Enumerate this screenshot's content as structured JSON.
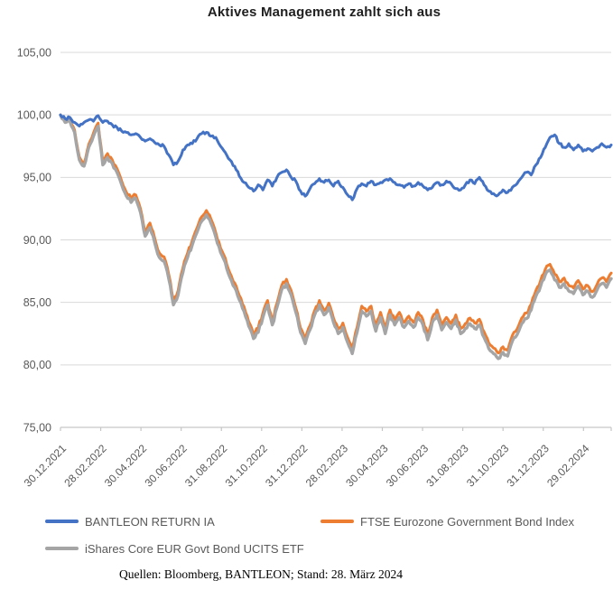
{
  "title": "Aktives Management zahlt sich aus",
  "footer": "Quellen: Bloomberg, BANTLEON; Stand: 28. März 2024",
  "colors": {
    "blue": "#4472C4",
    "orange": "#ED7D31",
    "gray": "#A5A5A5",
    "gridline": "#D9D9D9",
    "axis_line": "#C6C6C6",
    "axis_text": "#595959"
  },
  "chart_data": {
    "type": "line",
    "title": "Aktives Management zahlt sich aus",
    "xlabel": "",
    "ylabel": "",
    "ylim": [
      75,
      105
    ],
    "grid": true,
    "legend_position": "bottom",
    "y_tick_labels": [
      "105,00",
      "100,00",
      "95,00",
      "90,00",
      "85,00",
      "80,00",
      "75,00"
    ],
    "y_tick_values": [
      105,
      100,
      95,
      90,
      85,
      80,
      75
    ],
    "x_tick_labels": [
      "30.12.2021",
      "28.02.2022",
      "30.04.2022",
      "30.06.2022",
      "31.08.2022",
      "31.10.2022",
      "31.12.2022",
      "28.02.2023",
      "30.04.2023",
      "30.06.2023",
      "31.08.2023",
      "31.10.2023",
      "31.12.2023",
      "29.02.2024"
    ],
    "x_range_note": "weekly values from 30.12.2021 to 28.03.2024",
    "series": [
      {
        "name": "BANTLEON RETURN IA",
        "color": "#4472C4",
        "values": [
          100.0,
          99.7,
          99.8,
          99.4,
          99.1,
          99.4,
          99.6,
          99.5,
          99.95,
          99.4,
          99.5,
          99.2,
          99.0,
          98.7,
          98.6,
          98.4,
          98.5,
          98.2,
          97.9,
          98.1,
          97.8,
          97.6,
          97.5,
          96.8,
          96.0,
          96.3,
          97.2,
          97.6,
          97.7,
          98.1,
          98.5,
          98.6,
          98.3,
          98.2,
          97.5,
          97.0,
          96.4,
          95.9,
          95.1,
          94.6,
          94.2,
          93.9,
          94.4,
          94.0,
          94.8,
          94.3,
          95.0,
          95.4,
          95.6,
          95.0,
          94.7,
          93.9,
          93.5,
          94.1,
          94.5,
          94.9,
          94.6,
          94.8,
          94.3,
          94.7,
          94.2,
          93.6,
          93.2,
          94.1,
          94.5,
          94.3,
          94.7,
          94.4,
          94.6,
          94.8,
          94.9,
          94.6,
          94.4,
          94.2,
          94.5,
          94.3,
          94.6,
          94.3,
          94.0,
          94.2,
          94.6,
          94.4,
          94.7,
          94.5,
          94.1,
          94.0,
          94.4,
          94.8,
          94.5,
          95.0,
          94.4,
          93.9,
          93.7,
          93.6,
          94.0,
          93.8,
          94.2,
          94.5,
          95.0,
          95.4,
          95.2,
          96.0,
          96.6,
          97.4,
          98.2,
          98.4,
          97.7,
          97.4,
          97.7,
          97.2,
          97.6,
          97.1,
          97.3,
          97.1,
          97.4,
          97.7,
          97.4,
          97.6
        ]
      },
      {
        "name": "FTSE Eurozone Government Bond Index",
        "color": "#ED7D31",
        "values": [
          100.0,
          99.5,
          99.65,
          98.8,
          96.65,
          96.15,
          97.65,
          98.55,
          99.35,
          96.3,
          96.9,
          96.4,
          95.7,
          94.7,
          93.8,
          93.3,
          93.6,
          92.5,
          90.65,
          91.35,
          90.15,
          88.95,
          88.65,
          87.25,
          85.15,
          85.95,
          87.75,
          88.95,
          89.95,
          90.95,
          91.85,
          92.35,
          91.65,
          90.55,
          89.35,
          88.55,
          87.35,
          86.55,
          85.55,
          84.65,
          83.45,
          82.45,
          82.95,
          84.15,
          85.15,
          83.55,
          84.95,
          86.35,
          86.85,
          85.95,
          84.55,
          82.95,
          82.05,
          83.15,
          84.35,
          85.15,
          84.35,
          84.95,
          83.75,
          82.85,
          83.35,
          82.2,
          81.3,
          83.0,
          84.7,
          84.3,
          84.7,
          83.1,
          84.2,
          82.9,
          84.4,
          83.6,
          84.2,
          83.4,
          83.9,
          83.4,
          84.2,
          83.6,
          82.4,
          83.8,
          84.4,
          83.2,
          83.8,
          83.3,
          84.0,
          82.9,
          83.3,
          83.75,
          83.35,
          83.65,
          82.65,
          81.75,
          81.35,
          80.95,
          81.45,
          81.15,
          82.35,
          82.85,
          83.75,
          84.15,
          84.85,
          85.95,
          86.75,
          87.65,
          88.05,
          87.25,
          86.65,
          86.95,
          86.35,
          86.15,
          86.75,
          86.05,
          86.35,
          85.85,
          86.45,
          86.95,
          86.65,
          87.35
        ]
      },
      {
        "name": "iShares Core EUR Govt Bond UCITS ETF",
        "color": "#A5A5A5",
        "values": [
          100.0,
          99.4,
          99.5,
          98.6,
          96.4,
          95.9,
          97.4,
          98.3,
          99.1,
          96.0,
          96.6,
          96.1,
          95.4,
          94.4,
          93.5,
          93.0,
          93.3,
          92.2,
          90.3,
          91.0,
          89.8,
          88.6,
          88.3,
          86.9,
          84.8,
          85.6,
          87.4,
          88.6,
          89.6,
          90.6,
          91.5,
          92.0,
          91.3,
          90.2,
          89.0,
          88.2,
          87.0,
          86.2,
          85.2,
          84.3,
          83.1,
          82.1,
          82.6,
          83.8,
          84.8,
          83.2,
          84.6,
          86.0,
          86.5,
          85.6,
          84.2,
          82.6,
          81.7,
          82.8,
          84.0,
          84.8,
          84.0,
          84.6,
          83.4,
          82.5,
          83.0,
          81.8,
          80.9,
          82.6,
          84.3,
          83.9,
          84.3,
          82.7,
          83.8,
          82.5,
          84.0,
          83.2,
          83.8,
          83.0,
          83.5,
          83.0,
          83.8,
          83.2,
          82.0,
          83.4,
          84.0,
          82.8,
          83.4,
          82.9,
          83.6,
          82.5,
          82.9,
          83.3,
          82.9,
          83.2,
          82.2,
          81.3,
          80.9,
          80.5,
          81.0,
          80.7,
          81.9,
          82.4,
          83.3,
          83.7,
          84.4,
          85.5,
          86.3,
          87.2,
          87.6,
          86.8,
          86.2,
          86.5,
          85.9,
          85.7,
          86.3,
          85.6,
          85.9,
          85.4,
          86.0,
          86.5,
          86.2,
          86.9
        ]
      }
    ]
  }
}
